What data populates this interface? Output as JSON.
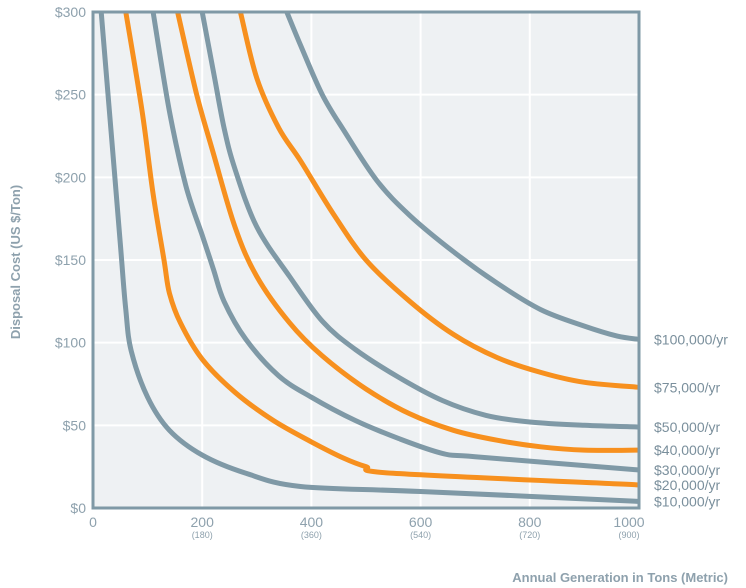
{
  "chart_data": {
    "type": "line",
    "xlabel": "Annual Generation in Tons (Metric)",
    "ylabel": "Disposal Cost (US $/Ton)",
    "xlim": [
      0,
      1000
    ],
    "ylim": [
      0,
      300
    ],
    "x_ticks": [
      {
        "value": 0,
        "label": "0",
        "sublabel": ""
      },
      {
        "value": 200,
        "label": "200",
        "sublabel": "(180)"
      },
      {
        "value": 400,
        "label": "400",
        "sublabel": "(360)"
      },
      {
        "value": 600,
        "label": "600",
        "sublabel": "(540)"
      },
      {
        "value": 800,
        "label": "800",
        "sublabel": "(720)"
      },
      {
        "value": 1000,
        "label": "1000",
        "sublabel": "(900)"
      }
    ],
    "y_ticks": [
      {
        "value": 0,
        "label": "$0"
      },
      {
        "value": 50,
        "label": "$50"
      },
      {
        "value": 100,
        "label": "$100"
      },
      {
        "value": 150,
        "label": "$150"
      },
      {
        "value": 200,
        "label": "$200"
      },
      {
        "value": 250,
        "label": "$250"
      },
      {
        "value": 300,
        "label": "$300"
      }
    ],
    "grid": true,
    "colors": {
      "gray": "#7f99a6",
      "orange": "#f7901e",
      "plot_bg": "#eef1f3",
      "grid": "#ffffff",
      "axis_text": "#8ea1ad"
    },
    "series": [
      {
        "name": "$10,000/yr",
        "color": "gray",
        "points": [
          [
            15,
            300
          ],
          [
            30,
            240
          ],
          [
            50,
            160
          ],
          [
            60,
            120
          ],
          [
            70,
            95
          ],
          [
            100,
            67
          ],
          [
            140,
            47
          ],
          [
            200,
            32
          ],
          [
            280,
            21
          ],
          [
            380,
            13
          ],
          [
            600,
            10
          ],
          [
            1000,
            4
          ]
        ]
      },
      {
        "name": "$20,000/yr",
        "color": "orange",
        "points": [
          [
            60,
            300
          ],
          [
            90,
            240
          ],
          [
            110,
            190
          ],
          [
            130,
            150
          ],
          [
            140,
            130
          ],
          [
            160,
            112
          ],
          [
            200,
            90
          ],
          [
            260,
            70
          ],
          [
            330,
            53
          ],
          [
            400,
            40
          ],
          [
            460,
            30
          ],
          [
            500,
            25
          ],
          [
            550,
            21
          ],
          [
            1000,
            14
          ]
        ]
      },
      {
        "name": "$30,000/yr",
        "color": "gray",
        "points": [
          [
            110,
            300
          ],
          [
            140,
            240
          ],
          [
            170,
            195
          ],
          [
            200,
            165
          ],
          [
            220,
            145
          ],
          [
            240,
            125
          ],
          [
            280,
            102
          ],
          [
            340,
            80
          ],
          [
            400,
            67
          ],
          [
            480,
            53
          ],
          [
            560,
            42
          ],
          [
            640,
            33
          ],
          [
            700,
            31
          ],
          [
            1000,
            23
          ]
        ]
      },
      {
        "name": "$40,000/yr",
        "color": "orange",
        "points": [
          [
            155,
            300
          ],
          [
            190,
            250
          ],
          [
            220,
            215
          ],
          [
            260,
            170
          ],
          [
            300,
            140
          ],
          [
            360,
            112
          ],
          [
            420,
            92
          ],
          [
            500,
            72
          ],
          [
            580,
            57
          ],
          [
            660,
            47
          ],
          [
            740,
            41
          ],
          [
            820,
            37
          ],
          [
            900,
            35
          ],
          [
            1000,
            35
          ]
        ]
      },
      {
        "name": "$50,000/yr",
        "color": "gray",
        "points": [
          [
            200,
            300
          ],
          [
            220,
            265
          ],
          [
            240,
            230
          ],
          [
            260,
            205
          ],
          [
            300,
            170
          ],
          [
            360,
            140
          ],
          [
            420,
            113
          ],
          [
            480,
            96
          ],
          [
            560,
            79
          ],
          [
            640,
            65
          ],
          [
            720,
            56
          ],
          [
            800,
            52
          ],
          [
            900,
            50
          ],
          [
            1000,
            49
          ]
        ]
      },
      {
        "name": "$75,000/yr",
        "color": "orange",
        "points": [
          [
            270,
            300
          ],
          [
            300,
            260
          ],
          [
            340,
            230
          ],
          [
            380,
            210
          ],
          [
            440,
            178
          ],
          [
            500,
            150
          ],
          [
            580,
            125
          ],
          [
            660,
            105
          ],
          [
            740,
            91
          ],
          [
            820,
            82
          ],
          [
            900,
            76
          ],
          [
            1000,
            73
          ]
        ]
      },
      {
        "name": "$100,000/yr",
        "color": "gray",
        "points": [
          [
            355,
            300
          ],
          [
            380,
            280
          ],
          [
            420,
            250
          ],
          [
            460,
            228
          ],
          [
            520,
            198
          ],
          [
            580,
            177
          ],
          [
            660,
            155
          ],
          [
            740,
            136
          ],
          [
            820,
            120
          ],
          [
            900,
            110
          ],
          [
            960,
            104
          ],
          [
            1000,
            102
          ]
        ]
      }
    ]
  }
}
